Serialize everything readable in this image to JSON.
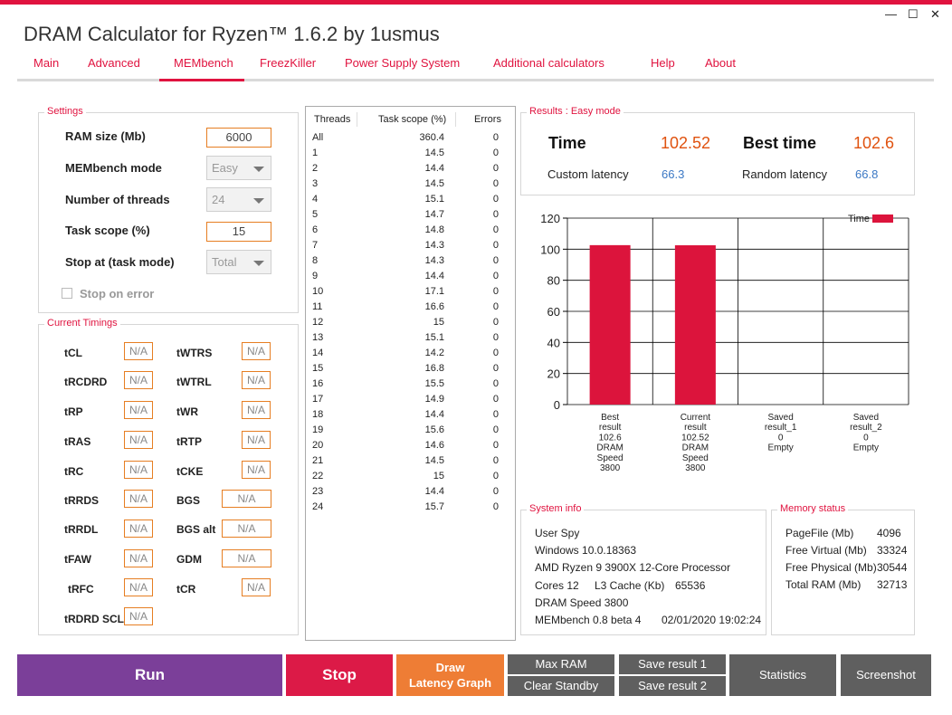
{
  "window": {
    "title": "DRAM Calculator for Ryzen™ 1.6.2 by 1usmus",
    "minimize": "—",
    "maximize": "☐",
    "close": "✕"
  },
  "tabs": [
    "Main",
    "Advanced",
    "MEMbench",
    "FreezKiller",
    "Power Supply System",
    "Additional calculators",
    "Help",
    "About"
  ],
  "active_tab": "MEMbench",
  "settings": {
    "title": "Settings",
    "ram_size_label": "RAM size (Mb)",
    "ram_size_value": "6000",
    "mode_label": "MEMbench mode",
    "mode_value": "Easy",
    "threads_label": "Number of threads",
    "threads_value": "24",
    "task_scope_label": "Task scope (%)",
    "task_scope_value": "15",
    "stop_at_label": "Stop at (task mode)",
    "stop_at_value": "Total",
    "stop_on_error_label": "Stop on error"
  },
  "timings": {
    "title": "Current Timings",
    "left": [
      {
        "label": "tCL",
        "value": "N/A"
      },
      {
        "label": "tRCDRD",
        "value": "N/A"
      },
      {
        "label": "tRP",
        "value": "N/A"
      },
      {
        "label": "tRAS",
        "value": "N/A"
      },
      {
        "label": "tRC",
        "value": "N/A"
      },
      {
        "label": "tRRDS",
        "value": "N/A"
      },
      {
        "label": "tRRDL",
        "value": "N/A"
      },
      {
        "label": "tFAW",
        "value": "N/A"
      },
      {
        "label": "tRFC",
        "value": "N/A"
      },
      {
        "label": "tRDRD SCL",
        "value": "N/A"
      }
    ],
    "right": [
      {
        "label": "tWTRS",
        "value": "N/A"
      },
      {
        "label": "tWTRL",
        "value": "N/A"
      },
      {
        "label": "tWR",
        "value": "N/A"
      },
      {
        "label": "tRTP",
        "value": "N/A"
      },
      {
        "label": "tCKE",
        "value": "N/A"
      },
      {
        "label": "BGS",
        "value": "N/A"
      },
      {
        "label": "BGS alt",
        "value": "N/A"
      },
      {
        "label": "GDM",
        "value": "N/A"
      },
      {
        "label": "tCR",
        "value": "N/A"
      }
    ]
  },
  "threads_table": {
    "headers": [
      "Threads",
      "Task scope (%)",
      "Errors"
    ],
    "rows": [
      [
        "All",
        "360.4",
        "0"
      ],
      [
        "1",
        "14.5",
        "0"
      ],
      [
        "2",
        "14.4",
        "0"
      ],
      [
        "3",
        "14.5",
        "0"
      ],
      [
        "4",
        "15.1",
        "0"
      ],
      [
        "5",
        "14.7",
        "0"
      ],
      [
        "6",
        "14.8",
        "0"
      ],
      [
        "7",
        "14.3",
        "0"
      ],
      [
        "8",
        "14.3",
        "0"
      ],
      [
        "9",
        "14.4",
        "0"
      ],
      [
        "10",
        "17.1",
        "0"
      ],
      [
        "11",
        "16.6",
        "0"
      ],
      [
        "12",
        "15",
        "0"
      ],
      [
        "13",
        "15.1",
        "0"
      ],
      [
        "14",
        "14.2",
        "0"
      ],
      [
        "15",
        "16.8",
        "0"
      ],
      [
        "16",
        "15.5",
        "0"
      ],
      [
        "17",
        "14.9",
        "0"
      ],
      [
        "18",
        "14.4",
        "0"
      ],
      [
        "19",
        "15.6",
        "0"
      ],
      [
        "20",
        "14.6",
        "0"
      ],
      [
        "21",
        "14.5",
        "0"
      ],
      [
        "22",
        "15",
        "0"
      ],
      [
        "23",
        "14.4",
        "0"
      ],
      [
        "24",
        "15.7",
        "0"
      ]
    ]
  },
  "results": {
    "title": "Results : Easy mode",
    "time_label": "Time",
    "time_value": "102.52",
    "best_time_label": "Best time",
    "best_time_value": "102.6",
    "custom_latency_label": "Custom latency",
    "custom_latency_value": "66.3",
    "random_latency_label": "Random latency",
    "random_latency_value": "66.8"
  },
  "chart_data": {
    "type": "bar",
    "legend": "Time",
    "legend_position": "top-right",
    "bar_color": "#dc143c",
    "ylim": [
      0,
      120
    ],
    "yticks": [
      0,
      20,
      40,
      60,
      80,
      100,
      120
    ],
    "grid": true,
    "categories": [
      [
        "Best",
        "result",
        "102.6",
        "DRAM",
        "Speed",
        "3800"
      ],
      [
        "Current",
        "result",
        "102.52",
        "DRAM",
        "Speed",
        "3800"
      ],
      [
        "Saved",
        "result_1",
        "0",
        "Empty"
      ],
      [
        "Saved",
        "result_2",
        "0",
        "Empty"
      ]
    ],
    "values": [
      102.6,
      102.52,
      0,
      0
    ]
  },
  "system_info": {
    "title": "System info",
    "user": "User Spy",
    "os": "Windows 10.0.18363",
    "cpu": "AMD Ryzen 9 3900X 12-Core Processor",
    "cores": "Cores 12",
    "l3_label": "L3 Cache (Kb)",
    "l3_value": "65536",
    "dram_speed": "DRAM Speed 3800",
    "membench": "MEMbench 0.8 beta 4",
    "datetime": "02/01/2020 19:02:24"
  },
  "memory_status": {
    "title": "Memory status",
    "items": [
      {
        "label": "PageFile (Mb)",
        "value": "4096"
      },
      {
        "label": "Free Virtual (Mb)",
        "value": "33324"
      },
      {
        "label": "Free Physical (Mb)",
        "value": "30544"
      },
      {
        "label": "Total RAM (Mb)",
        "value": "32713"
      }
    ]
  },
  "buttons": {
    "run": "Run",
    "stop": "Stop",
    "draw_line1": "Draw",
    "draw_line2": "Latency Graph",
    "max_ram": "Max RAM",
    "clear_standby": "Clear Standby",
    "save_result_1": "Save result 1",
    "save_result_2": "Save result 2",
    "statistics": "Statistics",
    "screenshot": "Screenshot"
  },
  "colors": {
    "accent_red": "#e0133f",
    "value_orange": "#e0520f",
    "value_blue": "#3b78c4",
    "run_purple": "#7b3f99",
    "stop_red": "#dc1a47",
    "draw_orange": "#ee7d35",
    "button_grey": "#5f5f5f"
  }
}
